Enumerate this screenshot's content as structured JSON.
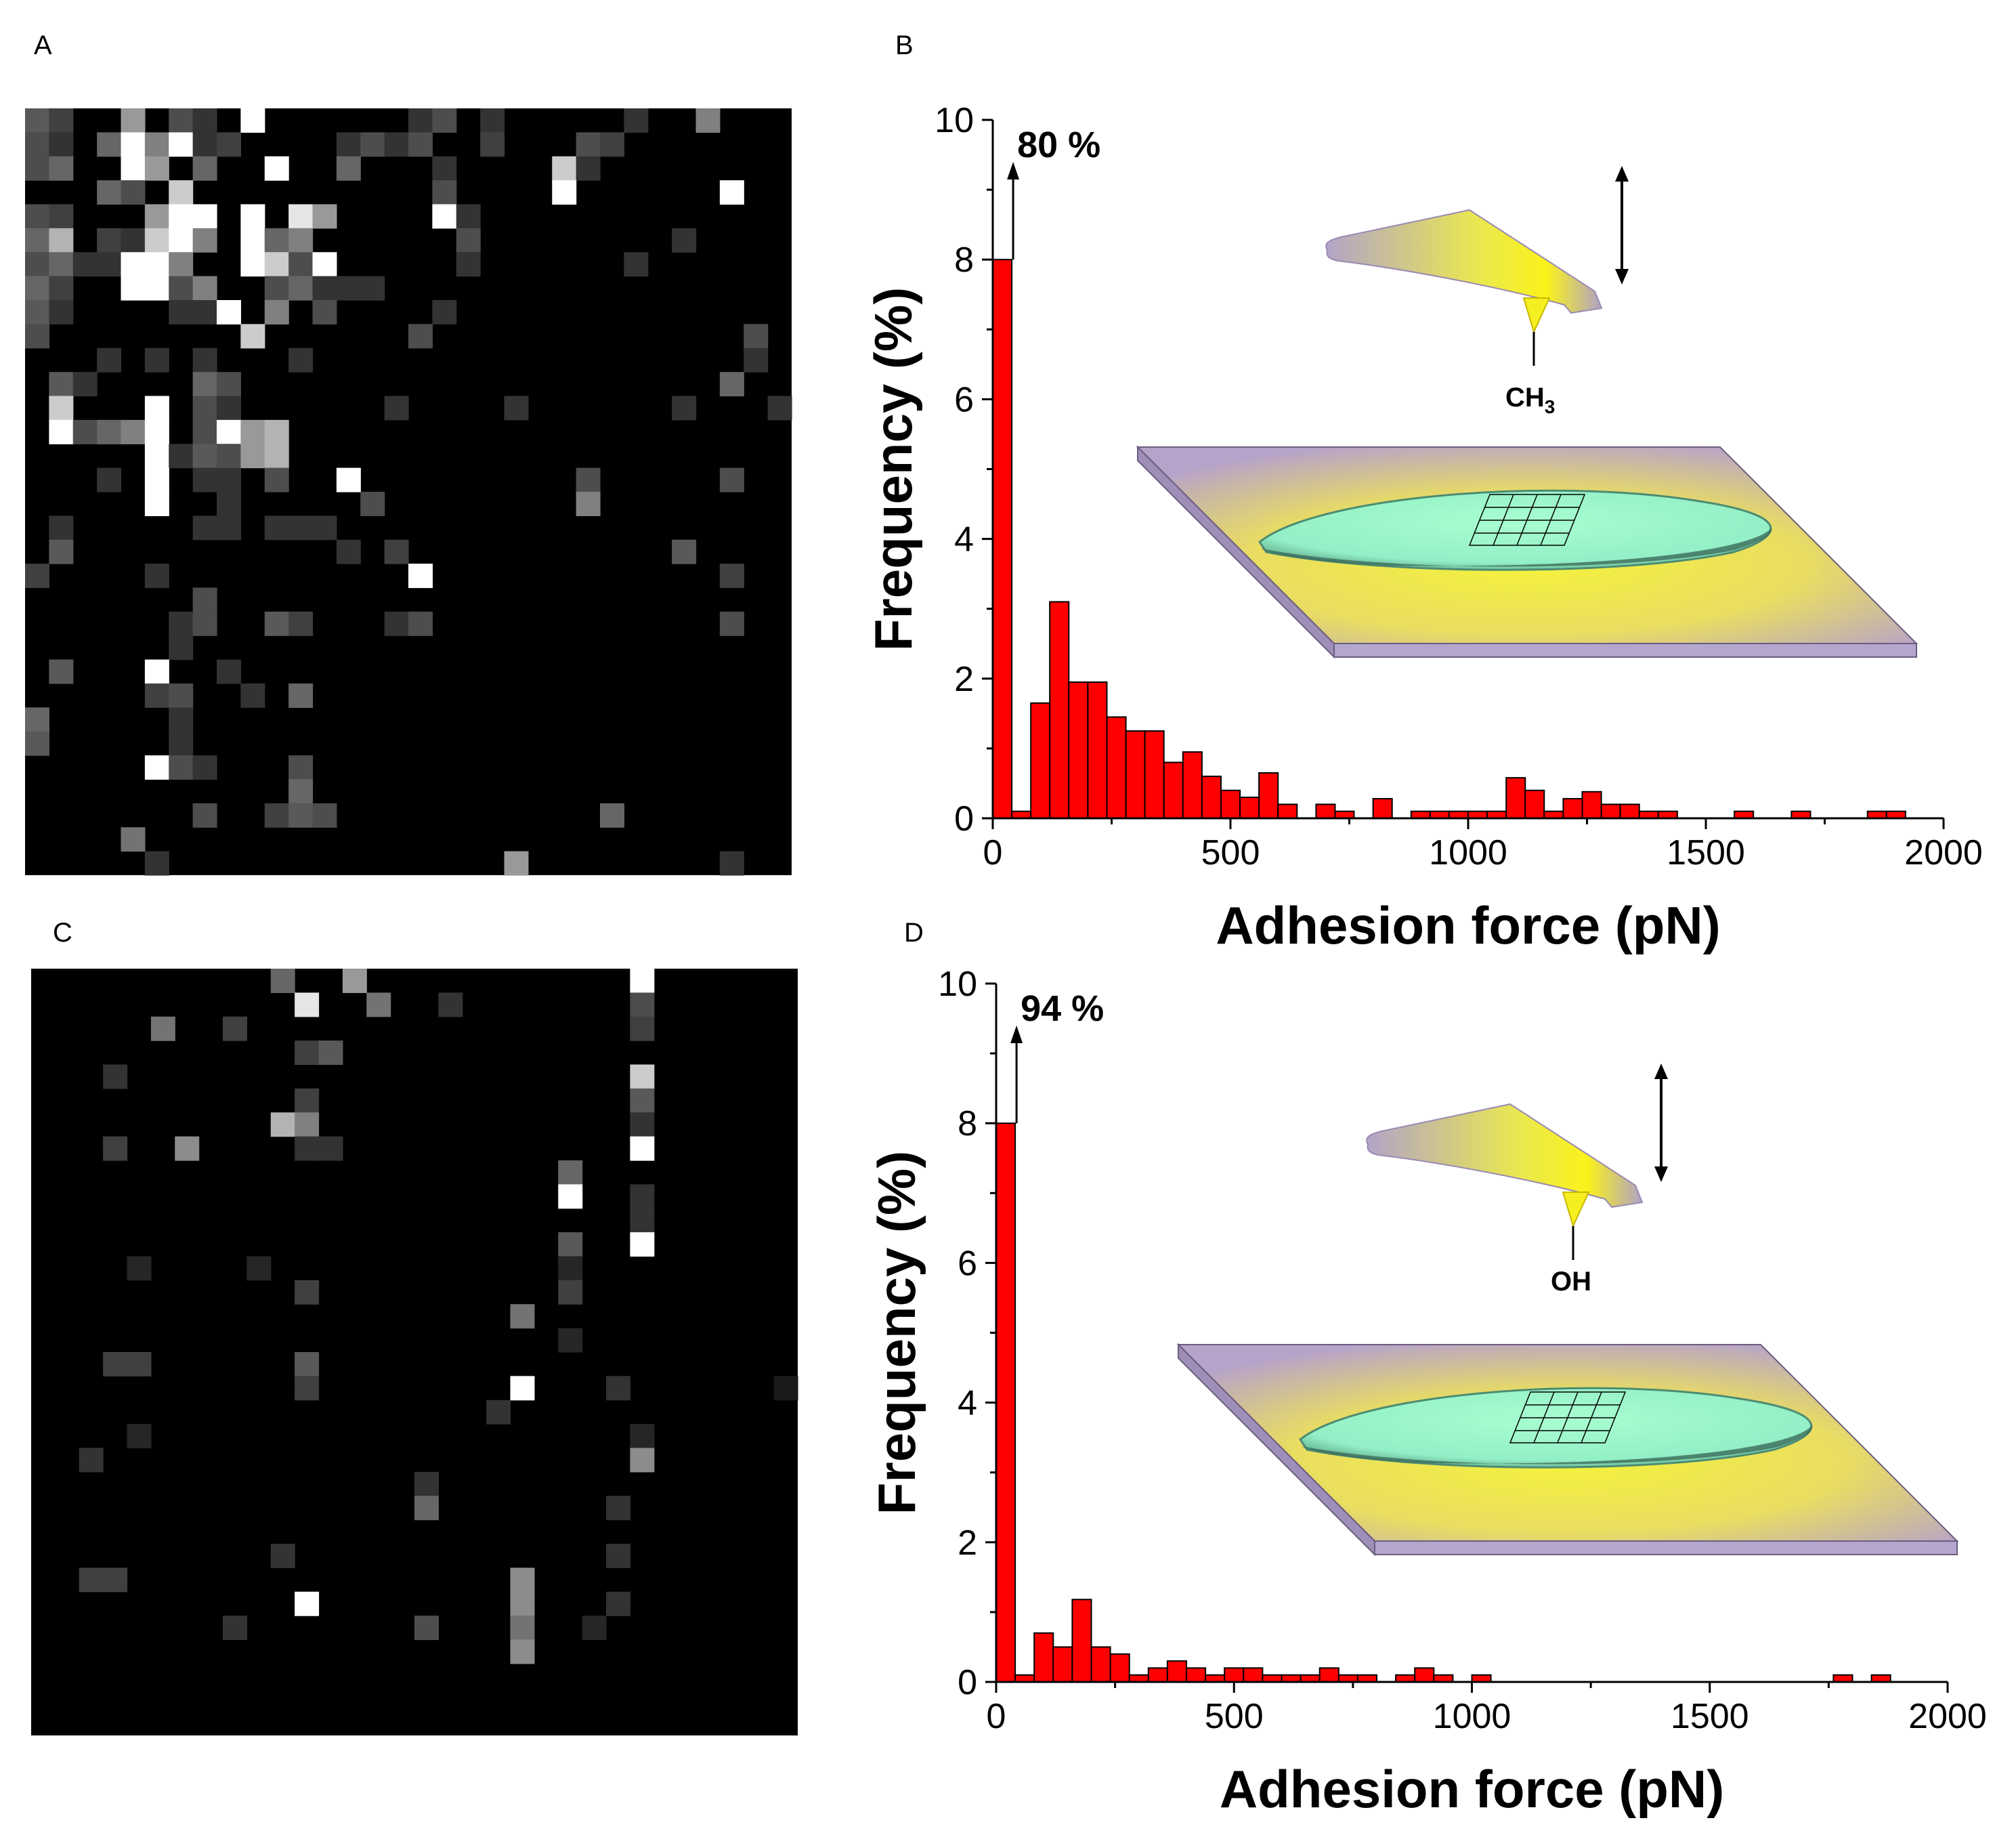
{
  "panels": {
    "A": {
      "letter": "A"
    },
    "B": {
      "letter": "B",
      "annotation": "80 %",
      "tip_label": "CH",
      "tip_label_sub": "3"
    },
    "C": {
      "letter": "C"
    },
    "D": {
      "letter": "D",
      "annotation": "94 %",
      "tip_label": "OH",
      "tip_label_sub": ""
    }
  },
  "colors": {
    "bar_fill": "#ff0000",
    "bar_stroke": "#000000",
    "map_background": "#000000"
  },
  "chart_data": [
    {
      "panel": "A",
      "type": "heatmap",
      "title": "",
      "grid": [
        32,
        32
      ],
      "cells": [
        [
          0,
          0,
          0.35
        ],
        [
          0,
          1,
          0.25
        ],
        [
          0,
          4,
          0.6
        ],
        [
          0,
          6,
          0.3
        ],
        [
          0,
          7,
          0.2
        ],
        [
          0,
          9,
          1.0
        ],
        [
          0,
          16,
          0.2
        ],
        [
          0,
          17,
          0.3
        ],
        [
          0,
          19,
          0.2
        ],
        [
          0,
          25,
          0.2
        ],
        [
          0,
          28,
          0.5
        ],
        [
          1,
          0,
          0.3
        ],
        [
          1,
          1,
          0.2
        ],
        [
          1,
          3,
          0.4
        ],
        [
          1,
          4,
          1.0
        ],
        [
          1,
          5,
          0.5
        ],
        [
          1,
          6,
          1.0
        ],
        [
          1,
          7,
          0.2
        ],
        [
          1,
          8,
          0.25
        ],
        [
          1,
          13,
          0.2
        ],
        [
          1,
          14,
          0.3
        ],
        [
          1,
          15,
          0.2
        ],
        [
          1,
          16,
          0.3
        ],
        [
          1,
          19,
          0.25
        ],
        [
          1,
          23,
          0.3
        ],
        [
          1,
          24,
          0.25
        ],
        [
          2,
          0,
          0.3
        ],
        [
          2,
          1,
          0.4
        ],
        [
          2,
          4,
          1.0
        ],
        [
          2,
          5,
          0.6
        ],
        [
          2,
          7,
          0.4
        ],
        [
          2,
          10,
          1.0
        ],
        [
          2,
          13,
          0.4
        ],
        [
          2,
          17,
          0.2
        ],
        [
          2,
          22,
          0.8
        ],
        [
          2,
          23,
          0.2
        ],
        [
          3,
          3,
          0.4
        ],
        [
          3,
          4,
          0.3
        ],
        [
          3,
          6,
          0.8
        ],
        [
          3,
          17,
          0.3
        ],
        [
          3,
          22,
          1.0
        ],
        [
          3,
          29,
          1.0
        ],
        [
          4,
          0,
          0.3
        ],
        [
          4,
          1,
          0.25
        ],
        [
          4,
          5,
          0.6
        ],
        [
          4,
          6,
          1.0
        ],
        [
          4,
          7,
          1.0
        ],
        [
          4,
          9,
          1.0
        ],
        [
          4,
          11,
          0.9
        ],
        [
          4,
          12,
          0.6
        ],
        [
          4,
          17,
          1.0
        ],
        [
          4,
          18,
          0.2
        ],
        [
          5,
          0,
          0.4
        ],
        [
          5,
          1,
          0.7
        ],
        [
          5,
          3,
          0.25
        ],
        [
          5,
          4,
          0.2
        ],
        [
          5,
          5,
          0.8
        ],
        [
          5,
          6,
          1.0
        ],
        [
          5,
          7,
          0.5
        ],
        [
          5,
          9,
          1.0
        ],
        [
          5,
          10,
          0.4
        ],
        [
          5,
          11,
          0.5
        ],
        [
          5,
          18,
          0.3
        ],
        [
          5,
          27,
          0.2
        ],
        [
          6,
          0,
          0.3
        ],
        [
          6,
          1,
          0.4
        ],
        [
          6,
          2,
          0.2
        ],
        [
          6,
          3,
          0.2
        ],
        [
          6,
          4,
          1.0
        ],
        [
          6,
          5,
          1.0
        ],
        [
          6,
          6,
          0.5
        ],
        [
          6,
          9,
          1.0
        ],
        [
          6,
          10,
          0.8
        ],
        [
          6,
          11,
          0.3
        ],
        [
          6,
          12,
          1.0
        ],
        [
          6,
          18,
          0.2
        ],
        [
          6,
          25,
          0.2
        ],
        [
          7,
          0,
          0.4
        ],
        [
          7,
          1,
          0.25
        ],
        [
          7,
          4,
          1.0
        ],
        [
          7,
          5,
          1.0
        ],
        [
          7,
          6,
          0.3
        ],
        [
          7,
          7,
          0.5
        ],
        [
          7,
          10,
          0.3
        ],
        [
          7,
          11,
          0.4
        ],
        [
          7,
          12,
          0.2
        ],
        [
          7,
          13,
          0.2
        ],
        [
          7,
          14,
          0.2
        ],
        [
          8,
          0,
          0.35
        ],
        [
          8,
          1,
          0.2
        ],
        [
          8,
          6,
          0.2
        ],
        [
          8,
          7,
          0.2
        ],
        [
          8,
          8,
          1.0
        ],
        [
          8,
          10,
          0.5
        ],
        [
          8,
          12,
          0.3
        ],
        [
          8,
          17,
          0.2
        ],
        [
          9,
          0,
          0.3
        ],
        [
          9,
          9,
          0.8
        ],
        [
          9,
          16,
          0.3
        ],
        [
          9,
          30,
          0.3
        ],
        [
          10,
          3,
          0.2
        ],
        [
          10,
          5,
          0.2
        ],
        [
          10,
          7,
          0.2
        ],
        [
          10,
          11,
          0.2
        ],
        [
          10,
          30,
          0.2
        ],
        [
          11,
          1,
          0.35
        ],
        [
          11,
          2,
          0.2
        ],
        [
          11,
          7,
          0.4
        ],
        [
          11,
          8,
          0.3
        ],
        [
          11,
          29,
          0.4
        ],
        [
          12,
          1,
          0.8
        ],
        [
          12,
          5,
          1.0
        ],
        [
          12,
          7,
          0.3
        ],
        [
          12,
          8,
          0.2
        ],
        [
          12,
          15,
          0.2
        ],
        [
          12,
          20,
          0.2
        ],
        [
          12,
          27,
          0.2
        ],
        [
          12,
          31,
          0.2
        ],
        [
          13,
          1,
          1.0
        ],
        [
          13,
          2,
          0.3
        ],
        [
          13,
          3,
          0.4
        ],
        [
          13,
          4,
          0.5
        ],
        [
          13,
          5,
          1.0
        ],
        [
          13,
          7,
          0.3
        ],
        [
          13,
          8,
          1.0
        ],
        [
          13,
          9,
          0.6
        ],
        [
          13,
          10,
          0.7
        ],
        [
          14,
          5,
          1.0
        ],
        [
          14,
          6,
          0.2
        ],
        [
          14,
          7,
          0.35
        ],
        [
          14,
          8,
          0.3
        ],
        [
          14,
          9,
          0.6
        ],
        [
          14,
          10,
          0.7
        ],
        [
          15,
          3,
          0.2
        ],
        [
          15,
          5,
          1.0
        ],
        [
          15,
          7,
          0.2
        ],
        [
          15,
          8,
          0.2
        ],
        [
          15,
          10,
          0.3
        ],
        [
          15,
          13,
          1.0
        ],
        [
          15,
          23,
          0.3
        ],
        [
          15,
          29,
          0.3
        ],
        [
          16,
          5,
          1.0
        ],
        [
          16,
          8,
          0.2
        ],
        [
          16,
          14,
          0.3
        ],
        [
          16,
          23,
          0.5
        ],
        [
          17,
          1,
          0.2
        ],
        [
          17,
          7,
          0.2
        ],
        [
          17,
          8,
          0.2
        ],
        [
          17,
          10,
          0.2
        ],
        [
          17,
          11,
          0.2
        ],
        [
          17,
          12,
          0.2
        ],
        [
          18,
          1,
          0.35
        ],
        [
          18,
          13,
          0.2
        ],
        [
          18,
          15,
          0.25
        ],
        [
          18,
          27,
          0.35
        ],
        [
          19,
          0,
          0.25
        ],
        [
          19,
          5,
          0.2
        ],
        [
          19,
          16,
          1.0
        ],
        [
          19,
          29,
          0.25
        ],
        [
          20,
          7,
          0.3
        ],
        [
          21,
          6,
          0.2
        ],
        [
          21,
          7,
          0.3
        ],
        [
          21,
          10,
          0.35
        ],
        [
          21,
          11,
          0.25
        ],
        [
          21,
          15,
          0.2
        ],
        [
          21,
          16,
          0.3
        ],
        [
          21,
          29,
          0.3
        ],
        [
          22,
          6,
          0.2
        ],
        [
          23,
          1,
          0.35
        ],
        [
          23,
          5,
          1.0
        ],
        [
          23,
          8,
          0.2
        ],
        [
          24,
          5,
          0.25
        ],
        [
          24,
          6,
          0.3
        ],
        [
          24,
          9,
          0.2
        ],
        [
          24,
          11,
          0.4
        ],
        [
          25,
          0,
          0.4
        ],
        [
          25,
          6,
          0.2
        ],
        [
          26,
          0,
          0.35
        ],
        [
          26,
          6,
          0.2
        ],
        [
          27,
          5,
          1.0
        ],
        [
          27,
          6,
          0.3
        ],
        [
          27,
          7,
          0.2
        ],
        [
          27,
          11,
          0.3
        ],
        [
          28,
          11,
          0.4
        ],
        [
          29,
          7,
          0.3
        ],
        [
          29,
          10,
          0.25
        ],
        [
          29,
          11,
          0.35
        ],
        [
          29,
          12,
          0.3
        ],
        [
          29,
          24,
          0.4
        ],
        [
          30,
          4,
          0.45
        ],
        [
          31,
          5,
          0.2
        ],
        [
          31,
          20,
          0.6
        ],
        [
          31,
          29,
          0.2
        ]
      ]
    },
    {
      "panel": "B",
      "type": "bar",
      "xlabel": "Adhesion force (pN)",
      "ylabel": "Frequency (%)",
      "xlim": [
        0,
        2000
      ],
      "ylim": [
        0,
        10
      ],
      "xticks": [
        0,
        500,
        1000,
        1500,
        2000
      ],
      "yticks": [
        0,
        2,
        4,
        6,
        8,
        10
      ],
      "bin_width": 40,
      "bin_starts": [
        0,
        40,
        80,
        120,
        160,
        200,
        240,
        280,
        320,
        360,
        400,
        440,
        480,
        520,
        560,
        600,
        680,
        720,
        800,
        880,
        920,
        960,
        1000,
        1040,
        1080,
        1120,
        1160,
        1200,
        1240,
        1280,
        1320,
        1360,
        1400,
        1560,
        1680,
        1840,
        1880
      ],
      "values": [
        80,
        0.1,
        1.65,
        3.1,
        1.95,
        1.95,
        1.45,
        1.25,
        1.25,
        0.8,
        0.95,
        0.6,
        0.4,
        0.3,
        0.65,
        0.2,
        0.2,
        0.1,
        0.28,
        0.1,
        0.1,
        0.1,
        0.1,
        0.1,
        0.58,
        0.4,
        0.1,
        0.28,
        0.38,
        0.2,
        0.2,
        0.1,
        0.1,
        0.1,
        0.1,
        0.1,
        0.1
      ],
      "annotation": "80 %"
    },
    {
      "panel": "C",
      "type": "heatmap",
      "title": "",
      "grid": [
        32,
        32
      ],
      "cells": [
        [
          0,
          10,
          0.4
        ],
        [
          0,
          13,
          0.6
        ],
        [
          0,
          25,
          1.0
        ],
        [
          1,
          11,
          0.9
        ],
        [
          1,
          14,
          0.45
        ],
        [
          1,
          17,
          0.2
        ],
        [
          1,
          25,
          0.3
        ],
        [
          2,
          5,
          0.45
        ],
        [
          2,
          8,
          0.25
        ],
        [
          2,
          25,
          0.25
        ],
        [
          3,
          11,
          0.25
        ],
        [
          3,
          12,
          0.35
        ],
        [
          4,
          3,
          0.2
        ],
        [
          4,
          25,
          0.8
        ],
        [
          5,
          11,
          0.25
        ],
        [
          5,
          25,
          0.35
        ],
        [
          6,
          10,
          0.7
        ],
        [
          6,
          11,
          0.5
        ],
        [
          6,
          25,
          0.2
        ],
        [
          7,
          3,
          0.25
        ],
        [
          7,
          6,
          0.55
        ],
        [
          7,
          11,
          0.2
        ],
        [
          7,
          12,
          0.2
        ],
        [
          7,
          25,
          1.0
        ],
        [
          8,
          22,
          0.4
        ],
        [
          9,
          22,
          1.0
        ],
        [
          9,
          25,
          0.2
        ],
        [
          10,
          25,
          0.2
        ],
        [
          11,
          22,
          0.35
        ],
        [
          11,
          25,
          1.0
        ],
        [
          12,
          4,
          0.15
        ],
        [
          12,
          9,
          0.15
        ],
        [
          12,
          22,
          0.15
        ],
        [
          13,
          11,
          0.25
        ],
        [
          13,
          22,
          0.25
        ],
        [
          14,
          20,
          0.45
        ],
        [
          15,
          22,
          0.15
        ],
        [
          16,
          3,
          0.25
        ],
        [
          16,
          4,
          0.25
        ],
        [
          16,
          11,
          0.35
        ],
        [
          17,
          11,
          0.25
        ],
        [
          17,
          20,
          1.0
        ],
        [
          17,
          24,
          0.2
        ],
        [
          17,
          31,
          0.1
        ],
        [
          18,
          19,
          0.2
        ],
        [
          19,
          4,
          0.15
        ],
        [
          19,
          25,
          0.15
        ],
        [
          20,
          2,
          0.2
        ],
        [
          20,
          25,
          0.55
        ],
        [
          21,
          16,
          0.2
        ],
        [
          22,
          16,
          0.4
        ],
        [
          22,
          24,
          0.2
        ],
        [
          24,
          10,
          0.2
        ],
        [
          24,
          24,
          0.2
        ],
        [
          25,
          2,
          0.25
        ],
        [
          25,
          3,
          0.25
        ],
        [
          25,
          20,
          0.55
        ],
        [
          26,
          11,
          1.0
        ],
        [
          26,
          20,
          0.55
        ],
        [
          26,
          24,
          0.2
        ],
        [
          27,
          8,
          0.2
        ],
        [
          27,
          16,
          0.3
        ],
        [
          27,
          20,
          0.45
        ],
        [
          27,
          23,
          0.15
        ],
        [
          28,
          20,
          0.55
        ]
      ]
    },
    {
      "panel": "D",
      "type": "bar",
      "xlabel": "Adhesion force (pN)",
      "ylabel": "Frequency (%)",
      "xlim": [
        0,
        2000
      ],
      "ylim": [
        0,
        10
      ],
      "xticks": [
        0,
        500,
        1000,
        1500,
        2000
      ],
      "yticks": [
        0,
        2,
        4,
        6,
        8,
        10
      ],
      "bin_width": 40,
      "bin_starts": [
        0,
        40,
        80,
        120,
        160,
        200,
        240,
        280,
        320,
        360,
        400,
        440,
        480,
        520,
        560,
        600,
        640,
        680,
        720,
        760,
        840,
        880,
        920,
        1000,
        1760,
        1840
      ],
      "values": [
        94,
        0.1,
        0.7,
        0.5,
        1.18,
        0.5,
        0.4,
        0.1,
        0.2,
        0.3,
        0.2,
        0.1,
        0.2,
        0.2,
        0.1,
        0.1,
        0.1,
        0.2,
        0.1,
        0.1,
        0.1,
        0.2,
        0.1,
        0.1,
        0.1,
        0.1
      ],
      "annotation": "94 %"
    }
  ]
}
